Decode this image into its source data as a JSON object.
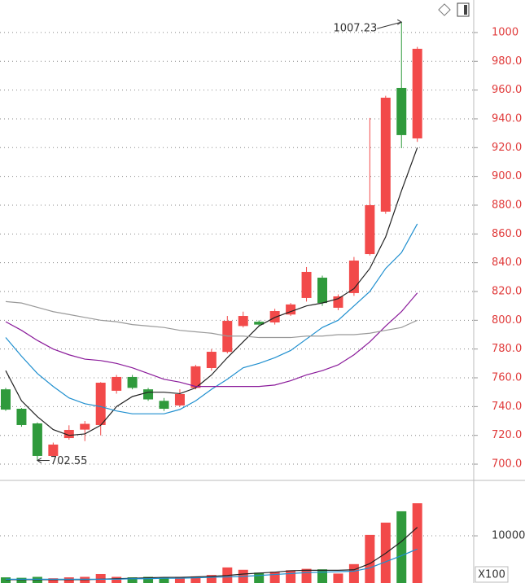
{
  "chart_data": [
    {
      "type": "candlestick",
      "open": [
        752,
        738.5,
        728.3,
        705.7,
        718.1,
        724,
        727.2,
        751,
        760.6,
        752,
        744,
        740.8,
        753,
        766.8,
        778,
        796,
        799,
        798.5,
        804,
        815.5,
        829.6,
        808.7,
        818.9,
        846,
        875.5,
        961.5,
        926.4
      ],
      "high": [
        753,
        739,
        729,
        715,
        727,
        730,
        757,
        762,
        762,
        753,
        746,
        752,
        769,
        780,
        803,
        806,
        800,
        808,
        812,
        837,
        831,
        818,
        844,
        940.6,
        956,
        1007.23,
        990
      ],
      "low": [
        737,
        726,
        702.55,
        705,
        717,
        716,
        720,
        749,
        752,
        744,
        737,
        740,
        752,
        765,
        777,
        795,
        796,
        797,
        803,
        813,
        810,
        807,
        817,
        845,
        874,
        919.6,
        924
      ],
      "close": [
        737.9,
        727.2,
        705.7,
        713.6,
        723.8,
        728,
        756.6,
        760.6,
        753,
        745,
        738.5,
        748.7,
        768,
        778.1,
        799.6,
        803,
        797,
        806.4,
        811,
        833.6,
        812,
        816.6,
        841.5,
        880,
        954.7,
        928.7,
        988.7
      ],
      "up_color": "#f24a4a",
      "down_color": "#2f9a3c",
      "lines": [
        {
          "color": "#222222",
          "values": [
            765,
            744,
            733,
            724,
            720,
            721,
            727,
            740,
            747,
            750,
            750,
            749,
            753,
            762,
            774,
            785,
            796,
            802,
            806,
            810,
            812,
            815,
            822,
            836,
            858,
            890,
            920
          ]
        },
        {
          "color": "#1f8fcf",
          "values": [
            788,
            775,
            763,
            754,
            746,
            742,
            740,
            737,
            735,
            735,
            735,
            738,
            744,
            752,
            759,
            767,
            770,
            774,
            779,
            787,
            795,
            800,
            810,
            820,
            836,
            847,
            867
          ]
        },
        {
          "color": "#8a1a9a",
          "values": [
            799,
            793,
            786,
            780,
            776,
            773,
            772,
            770,
            767,
            763,
            759,
            757,
            754,
            754,
            754,
            754,
            754,
            755,
            758,
            762,
            765,
            769,
            776,
            785,
            796,
            806,
            819
          ]
        },
        {
          "color": "#999999",
          "values": [
            813,
            812,
            809,
            806,
            804,
            802,
            800,
            799,
            797,
            796,
            795,
            793,
            792,
            791,
            789,
            789,
            788,
            788,
            788,
            789,
            789,
            790,
            790,
            791,
            793,
            795,
            800
          ]
        }
      ],
      "annotations": [
        1007.23,
        702.55
      ],
      "ylim": [
        688.7,
        1022.6
      ],
      "yticks": [
        {
          "value": 700,
          "label": "700.0"
        },
        {
          "value": 720,
          "label": "720.0"
        },
        {
          "value": 740,
          "label": "740.0"
        },
        {
          "value": 760,
          "label": "760.0"
        },
        {
          "value": 780,
          "label": "780.0"
        },
        {
          "value": 800,
          "label": "800.0"
        },
        {
          "value": 820,
          "label": "820.0"
        },
        {
          "value": 840,
          "label": "840.0"
        },
        {
          "value": 860,
          "label": "860.0"
        },
        {
          "value": 880,
          "label": "880.0"
        },
        {
          "value": 900,
          "label": "900.0"
        },
        {
          "value": 920,
          "label": "920.0"
        },
        {
          "value": 940,
          "label": "940.0"
        },
        {
          "value": 960,
          "label": "960.0"
        },
        {
          "value": 980,
          "label": "980.0"
        },
        1000
      ],
      "grid": true
    },
    {
      "type": "bar",
      "values": [
        1200,
        1100,
        1300,
        1000,
        1200,
        1300,
        1900,
        1300,
        1200,
        1300,
        1200,
        1300,
        1400,
        1700,
        3300,
        2800,
        2200,
        2400,
        2700,
        3000,
        2900,
        2000,
        4000,
        10200,
        12800,
        15200,
        16900
      ],
      "lines": [
        {
          "color": "#222222",
          "values": [
            700,
            700,
            700,
            700,
            700,
            700,
            800,
            900,
            1000,
            1100,
            1200,
            1200,
            1300,
            1400,
            1600,
            1900,
            2100,
            2300,
            2600,
            2700,
            2700,
            2700,
            2800,
            4100,
            6300,
            8800,
            11800
          ]
        },
        {
          "color": "#1f8fcf",
          "values": [
            800,
            800,
            800,
            800,
            800,
            800,
            800,
            800,
            900,
            900,
            1000,
            1000,
            1100,
            1200,
            1300,
            1400,
            1600,
            1800,
            2000,
            2200,
            2300,
            2400,
            2500,
            3200,
            4500,
            5800,
            7200
          ]
        }
      ],
      "unit_label": "X100",
      "ylim": [
        0,
        21400
      ],
      "yticks": [
        10000
      ],
      "grid": true
    }
  ]
}
